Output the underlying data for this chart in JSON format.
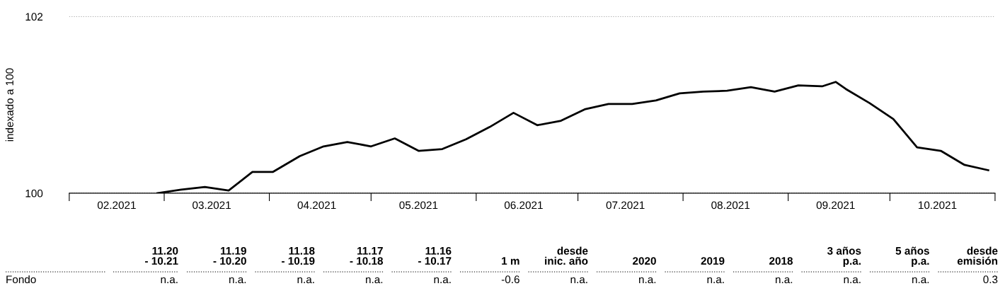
{
  "chart_data": {
    "type": "line",
    "ylabel": "indexado a 100",
    "grid": "y",
    "line_style": "solid",
    "xlim": [
      "2021-02-01",
      "2021-11-01"
    ],
    "xticks": [
      {
        "value": "2021-02-01",
        "label": null
      },
      {
        "value": "2021-02-15",
        "label": "02.2021"
      },
      {
        "value": "2021-03-01",
        "label": null
      },
      {
        "value": "2021-03-15",
        "label": "03.2021"
      },
      {
        "value": "2021-04-01",
        "label": null
      },
      {
        "value": "2021-04-15",
        "label": "04.2021"
      },
      {
        "value": "2021-05-01",
        "label": null
      },
      {
        "value": "2021-05-15",
        "label": "05.2021"
      },
      {
        "value": "2021-06-01",
        "label": null
      },
      {
        "value": "2021-06-15",
        "label": "06.2021"
      },
      {
        "value": "2021-07-01",
        "label": null
      },
      {
        "value": "2021-07-15",
        "label": "07.2021"
      },
      {
        "value": "2021-08-01",
        "label": null
      },
      {
        "value": "2021-08-15",
        "label": "08.2021"
      },
      {
        "value": "2021-09-01",
        "label": null
      },
      {
        "value": "2021-09-15",
        "label": "09.2021"
      },
      {
        "value": "2021-10-01",
        "label": null
      },
      {
        "value": "2021-10-15",
        "label": "10.2021"
      },
      {
        "value": "2021-11-01",
        "label": null
      }
    ],
    "ylim": [
      100,
      102
    ],
    "yticks": [
      100,
      102
    ],
    "x": [
      "2021-02-27",
      "2021-03-06",
      "2021-03-13",
      "2021-03-20",
      "2021-03-27",
      "2021-04-02",
      "2021-04-10",
      "2021-04-17",
      "2021-04-24",
      "2021-05-01",
      "2021-05-08",
      "2021-05-15",
      "2021-05-22",
      "2021-05-29",
      "2021-06-05",
      "2021-06-12",
      "2021-06-19",
      "2021-06-26",
      "2021-07-03",
      "2021-07-10",
      "2021-07-17",
      "2021-07-24",
      "2021-07-31",
      "2021-08-07",
      "2021-08-14",
      "2021-08-21",
      "2021-08-28",
      "2021-09-04",
      "2021-09-11",
      "2021-09-15",
      "2021-09-18",
      "2021-09-25",
      "2021-10-02",
      "2021-10-09",
      "2021-10-16",
      "2021-10-23",
      "2021-10-30"
    ],
    "series": [
      {
        "color": "#000000",
        "values": [
          100.0,
          100.04,
          100.07,
          100.03,
          100.24,
          100.24,
          100.42,
          100.53,
          100.58,
          100.53,
          100.62,
          100.48,
          100.5,
          100.61,
          100.75,
          100.91,
          100.77,
          100.82,
          100.95,
          101.01,
          101.01,
          101.05,
          101.13,
          101.15,
          101.16,
          101.2,
          101.15,
          101.22,
          101.21,
          101.26,
          101.18,
          101.02,
          100.84,
          100.52,
          100.48,
          100.32,
          100.26
        ]
      }
    ],
    "annotations": [
      "11.20\n- 10.21",
      "11.19\n- 10.20",
      "11.18\n- 10.19",
      "11.17\n- 10.18",
      "11.16\n- 10.17",
      "1 m",
      "desde\ninic. año",
      "2020",
      "2019",
      "2018",
      "3 años\np.a.",
      "5 años\np.a.",
      "desde\nemisión",
      "Fondo",
      "n.a.",
      "n.a.",
      "n.a.",
      "n.a.",
      "n.a.",
      "-0.6",
      "n.a.",
      "n.a.",
      "n.a.",
      "n.a.",
      "n.a.",
      "n.a.",
      "0.3"
    ]
  }
}
